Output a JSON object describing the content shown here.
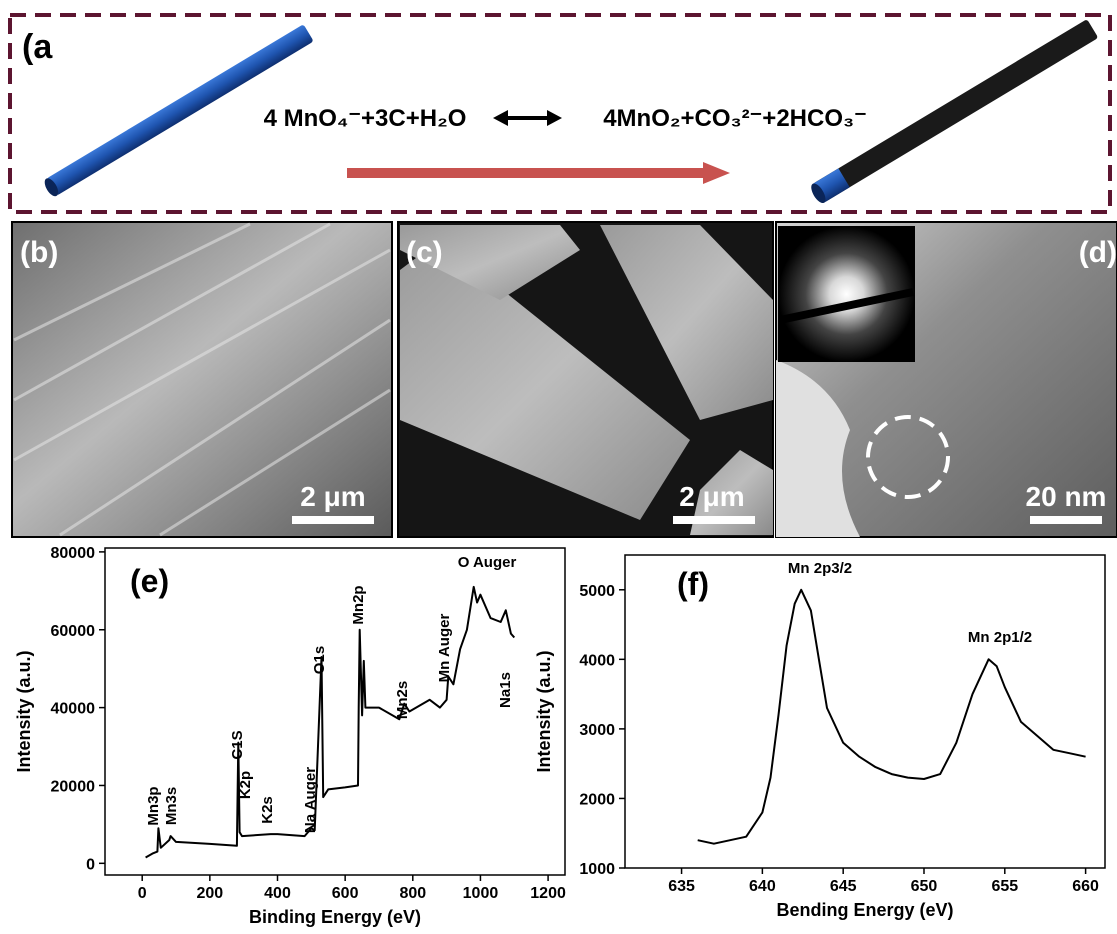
{
  "schematic": {
    "label": "(a",
    "equation_left": "4 MnO₄⁻+3C+H₂O",
    "equation_right": "4MnO₂+CO₃²⁻+2HCO₃⁻"
  },
  "images": [
    {
      "label": "(b)",
      "scale_bar": "2 μm"
    },
    {
      "label": "(c)",
      "scale_bar": "2 μm"
    },
    {
      "label": "(d)",
      "scale_bar": "20 nm"
    }
  ],
  "chart_data": [
    {
      "type": "line",
      "label": "(e)",
      "xlabel": "Binding Energy (eV)",
      "ylabel": "Intensity (a.u.)",
      "color": "#000000",
      "xlim": [
        -110,
        1250
      ],
      "ylim": [
        -3000,
        81000
      ],
      "xticks": [
        0,
        200,
        400,
        600,
        800,
        1000,
        1200
      ],
      "yticks": [
        0,
        20000,
        40000,
        60000,
        80000
      ],
      "x": [
        10,
        30,
        45,
        48,
        55,
        80,
        84,
        100,
        200,
        280,
        284,
        288,
        295,
        380,
        400,
        480,
        500,
        510,
        530,
        535,
        550,
        600,
        638,
        640,
        643,
        650,
        655,
        660,
        700,
        760,
        775,
        790,
        850,
        880,
        900,
        905,
        920,
        940,
        960,
        980,
        990,
        1000,
        1030,
        1060,
        1075,
        1090,
        1100
      ],
      "values": [
        1500,
        2500,
        3000,
        9000,
        4000,
        6000,
        7000,
        5500,
        5000,
        4500,
        31000,
        8000,
        7000,
        7500,
        7500,
        7000,
        9000,
        8500,
        53000,
        17000,
        19000,
        19500,
        20000,
        40000,
        60000,
        38000,
        52000,
        40000,
        40000,
        37000,
        41000,
        39000,
        42000,
        40000,
        42000,
        48000,
        46000,
        55000,
        60000,
        71000,
        67000,
        69000,
        63000,
        62000,
        65000,
        59000,
        58000
      ],
      "annotations": [
        "Mn3p",
        "Mn3s",
        "C1S",
        "K2p",
        "K2s",
        "Na Auger",
        "O1s",
        "Mn2p",
        "Mn2s",
        "Mn Auger",
        "O Auger",
        "Na1s"
      ]
    },
    {
      "type": "line",
      "label": "(f)",
      "xlabel": "Bending Energy (eV)",
      "ylabel": "Intensity (a.u.)",
      "color": "#000000",
      "xlim": [
        631.5,
        661.2
      ],
      "ylim": [
        1000,
        5500
      ],
      "xticks": [
        635,
        640,
        645,
        650,
        655,
        660
      ],
      "yticks": [
        1000,
        2000,
        3000,
        4000,
        5000
      ],
      "x": [
        636,
        637,
        638,
        639,
        640,
        640.5,
        641,
        641.5,
        642,
        642.4,
        643,
        643.5,
        644,
        645,
        646,
        647,
        648,
        649,
        650,
        651,
        652,
        653,
        654,
        654.5,
        655,
        656,
        657,
        658,
        659,
        660
      ],
      "values": [
        1400,
        1350,
        1400,
        1450,
        1800,
        2300,
        3200,
        4200,
        4800,
        5000,
        4700,
        4000,
        3300,
        2800,
        2600,
        2450,
        2350,
        2300,
        2280,
        2350,
        2800,
        3500,
        4000,
        3900,
        3600,
        3100,
        2900,
        2700,
        2650,
        2600
      ],
      "annotations": [
        "Mn 2p3/2",
        "Mn 2p1/2"
      ]
    }
  ]
}
